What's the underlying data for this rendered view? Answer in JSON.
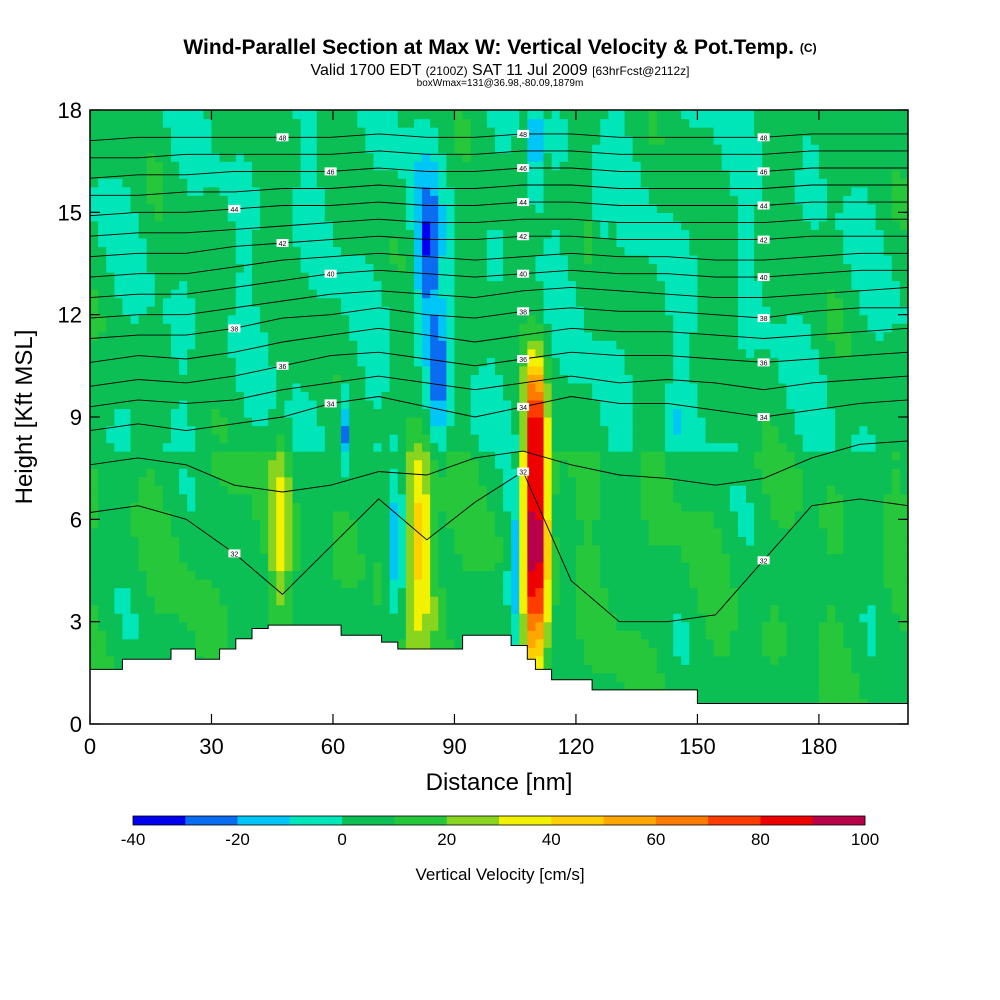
{
  "header": {
    "title": "Wind-Parallel Section at Max W: Vertical Velocity & Pot.Temp.",
    "copyright": "(C)",
    "valid_main": "Valid 1700 EDT",
    "valid_zulu": "(2100Z)",
    "valid_date": "SAT 11 Jul 2009",
    "forecast": "[63hrFcst@2112z]",
    "box_info": "boxWmax=131@36.98,-80.09,1879m"
  },
  "chart_data": {
    "type": "heatmap",
    "xlabel": "Distance [nm]",
    "ylabel": "Height [Kft MSL]",
    "xlim": [
      0,
      202
    ],
    "ylim": [
      0,
      18
    ],
    "x_ticks": [
      0,
      30,
      60,
      90,
      120,
      150,
      180
    ],
    "y_ticks": [
      0,
      3,
      6,
      9,
      12,
      15,
      18
    ],
    "colorbar": {
      "label": "Vertical Velocity [cm/s]",
      "range": [
        -40,
        100
      ],
      "tick_labels": [
        -40,
        -20,
        0,
        20,
        40,
        60,
        80,
        100
      ],
      "colors": [
        "#0000ee",
        "#0a6cf0",
        "#00c6f7",
        "#00e6b8",
        "#0bbf55",
        "#26c73b",
        "#88d41e",
        "#f2f200",
        "#ffd000",
        "#ffa600",
        "#ff7a00",
        "#ff3c00",
        "#ee0000",
        "#b8004a"
      ]
    },
    "terrain": [
      [
        0,
        1.6
      ],
      [
        8,
        1.6
      ],
      [
        8,
        1.9
      ],
      [
        20,
        1.9
      ],
      [
        20,
        2.2
      ],
      [
        26,
        2.2
      ],
      [
        26,
        1.9
      ],
      [
        32,
        1.9
      ],
      [
        32,
        2.2
      ],
      [
        36,
        2.2
      ],
      [
        36,
        2.5
      ],
      [
        40,
        2.5
      ],
      [
        40,
        2.8
      ],
      [
        44,
        2.8
      ],
      [
        44,
        2.9
      ],
      [
        62,
        2.9
      ],
      [
        62,
        2.6
      ],
      [
        72,
        2.6
      ],
      [
        72,
        2.4
      ],
      [
        76,
        2.4
      ],
      [
        76,
        2.2
      ],
      [
        92,
        2.2
      ],
      [
        92,
        2.6
      ],
      [
        104,
        2.6
      ],
      [
        104,
        2.3
      ],
      [
        108,
        2.3
      ],
      [
        108,
        1.9
      ],
      [
        110,
        1.9
      ],
      [
        110,
        1.6
      ],
      [
        114,
        1.6
      ],
      [
        114,
        1.3
      ],
      [
        124,
        1.3
      ],
      [
        124,
        1.0
      ],
      [
        150,
        1.0
      ],
      [
        150,
        0.6
      ],
      [
        202,
        0.6
      ]
    ],
    "theta_contour_labels": [
      "32",
      "34",
      "36",
      "38",
      "40",
      "42",
      "44",
      "46",
      "48"
    ],
    "theta_contour_levels": [
      {
        "level": 32,
        "heights": [
          6.2,
          6.4,
          6.0,
          5.0,
          3.8,
          5.2,
          6.6,
          5.4,
          6.5,
          7.4,
          4.2,
          3.0,
          3.0,
          3.2,
          4.8,
          6.4,
          6.6,
          6.4
        ]
      },
      {
        "level": 33,
        "heights": [
          7.6,
          7.8,
          7.6,
          7.0,
          6.8,
          7.0,
          7.4,
          7.3,
          7.8,
          8.0,
          7.6,
          7.3,
          7.2,
          7.0,
          7.2,
          7.8,
          8.2,
          8.3
        ]
      },
      {
        "level": 34,
        "heights": [
          8.6,
          8.8,
          8.6,
          8.8,
          9.0,
          9.4,
          9.6,
          9.3,
          9.0,
          9.3,
          9.6,
          9.4,
          9.4,
          9.2,
          9.0,
          9.2,
          9.4,
          9.5
        ]
      },
      {
        "level": 35,
        "heights": [
          9.3,
          9.5,
          9.4,
          9.5,
          9.8,
          10.0,
          10.2,
          10.0,
          9.8,
          10.0,
          10.2,
          10.0,
          10.1,
          10.0,
          9.8,
          10.0,
          10.1,
          10.2
        ]
      },
      {
        "level": 36,
        "heights": [
          9.9,
          10.1,
          10.0,
          10.2,
          10.5,
          10.8,
          10.9,
          10.7,
          10.5,
          10.7,
          10.9,
          10.8,
          10.8,
          10.7,
          10.6,
          10.7,
          10.8,
          10.9
        ]
      },
      {
        "level": 37,
        "heights": [
          10.6,
          10.8,
          10.7,
          10.9,
          11.2,
          11.4,
          11.6,
          11.4,
          11.2,
          11.4,
          11.6,
          11.5,
          11.5,
          11.4,
          11.3,
          11.4,
          11.5,
          11.6
        ]
      },
      {
        "level": 38,
        "heights": [
          11.3,
          11.4,
          11.4,
          11.6,
          11.9,
          12.0,
          12.2,
          12.0,
          11.9,
          12.1,
          12.2,
          12.1,
          12.1,
          12.0,
          11.9,
          12.1,
          12.2,
          12.2
        ]
      },
      {
        "level": 39,
        "heights": [
          11.9,
          12.0,
          12.0,
          12.2,
          12.4,
          12.6,
          12.7,
          12.6,
          12.5,
          12.7,
          12.8,
          12.7,
          12.6,
          12.5,
          12.5,
          12.6,
          12.7,
          12.8
        ]
      },
      {
        "level": 40,
        "heights": [
          12.5,
          12.6,
          12.6,
          12.8,
          13.0,
          13.2,
          13.3,
          13.2,
          13.1,
          13.2,
          13.3,
          13.2,
          13.2,
          13.1,
          13.1,
          13.2,
          13.3,
          13.3
        ]
      },
      {
        "level": 41,
        "heights": [
          13.1,
          13.2,
          13.2,
          13.4,
          13.6,
          13.7,
          13.8,
          13.7,
          13.6,
          13.7,
          13.8,
          13.7,
          13.7,
          13.6,
          13.6,
          13.7,
          13.8,
          13.8
        ]
      },
      {
        "level": 42,
        "heights": [
          13.7,
          13.8,
          13.8,
          14.0,
          14.1,
          14.2,
          14.3,
          14.2,
          14.2,
          14.3,
          14.3,
          14.2,
          14.2,
          14.2,
          14.2,
          14.3,
          14.3,
          14.3
        ]
      },
      {
        "level": 43,
        "heights": [
          14.3,
          14.4,
          14.4,
          14.5,
          14.6,
          14.7,
          14.8,
          14.7,
          14.7,
          14.8,
          14.8,
          14.7,
          14.7,
          14.7,
          14.7,
          14.8,
          14.8,
          14.8
        ]
      },
      {
        "level": 44,
        "heights": [
          14.9,
          15.0,
          15.0,
          15.1,
          15.2,
          15.2,
          15.3,
          15.2,
          15.2,
          15.3,
          15.3,
          15.2,
          15.2,
          15.2,
          15.2,
          15.3,
          15.3,
          15.3
        ]
      },
      {
        "level": 45,
        "heights": [
          15.5,
          15.5,
          15.6,
          15.6,
          15.7,
          15.7,
          15.8,
          15.7,
          15.7,
          15.8,
          15.8,
          15.7,
          15.7,
          15.7,
          15.7,
          15.8,
          15.8,
          15.8
        ]
      },
      {
        "level": 46,
        "heights": [
          16.0,
          16.1,
          16.1,
          16.2,
          16.2,
          16.2,
          16.3,
          16.2,
          16.2,
          16.3,
          16.3,
          16.2,
          16.2,
          16.2,
          16.2,
          16.3,
          16.3,
          16.3
        ]
      },
      {
        "level": 47,
        "heights": [
          16.6,
          16.6,
          16.7,
          16.7,
          16.7,
          16.7,
          16.8,
          16.7,
          16.7,
          16.8,
          16.8,
          16.7,
          16.7,
          16.7,
          16.7,
          16.8,
          16.8,
          16.8
        ]
      },
      {
        "level": 48,
        "heights": [
          17.1,
          17.2,
          17.2,
          17.2,
          17.2,
          17.2,
          17.3,
          17.2,
          17.2,
          17.3,
          17.3,
          17.2,
          17.2,
          17.2,
          17.2,
          17.3,
          17.3,
          17.3
        ]
      }
    ],
    "w_features": [
      {
        "x": 110,
        "y": 5.5,
        "sx": 2.2,
        "sy": 2.6,
        "w": 95
      },
      {
        "x": 110,
        "y": 9.0,
        "sx": 1.6,
        "sy": 1.2,
        "w": 45
      },
      {
        "x": 81,
        "y": 5.8,
        "sx": 2.6,
        "sy": 1.8,
        "w": 38
      },
      {
        "x": 47,
        "y": 6.0,
        "sx": 1.8,
        "sy": 1.8,
        "w": 24
      },
      {
        "x": 84,
        "y": 3.6,
        "sx": 3.5,
        "sy": 1.2,
        "w": 14
      },
      {
        "x": 76,
        "y": 5.0,
        "sx": 1.6,
        "sy": 1.8,
        "w": -34
      },
      {
        "x": 105,
        "y": 4.6,
        "sx": 1.3,
        "sy": 1.6,
        "w": -38
      },
      {
        "x": 83,
        "y": 13.8,
        "sx": 2.3,
        "sy": 1.6,
        "w": -30
      },
      {
        "x": 86,
        "y": 10.2,
        "sx": 1.8,
        "sy": 1.4,
        "w": -28
      },
      {
        "x": 63,
        "y": 8.6,
        "sx": 0.9,
        "sy": 0.9,
        "w": -28
      },
      {
        "x": 144,
        "y": 8.8,
        "sx": 0.7,
        "sy": 0.7,
        "w": -24
      },
      {
        "x": 126,
        "y": 15.0,
        "sx": 0.7,
        "sy": 1.0,
        "w": -22
      },
      {
        "x": 110,
        "y": 17.0,
        "sx": 0.8,
        "sy": 1.2,
        "w": -30
      }
    ]
  }
}
